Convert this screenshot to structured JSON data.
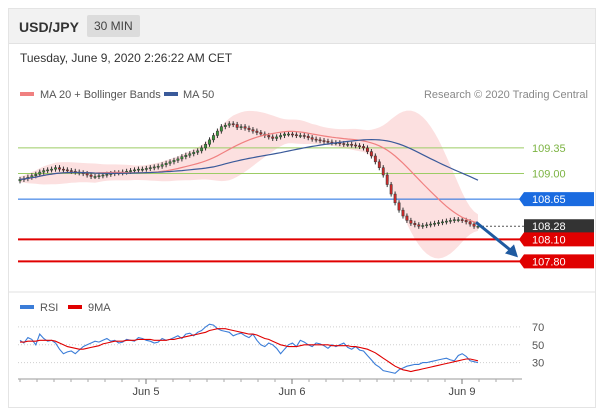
{
  "header": {
    "pair": "USD/JPY",
    "timeframe": "30 MIN",
    "timestamp": "Tuesday, June 9, 2020 2:26:22 AM CET"
  },
  "legend": {
    "items": [
      {
        "label": "MA 20 + Bollinger Bands",
        "color": "#f08080"
      },
      {
        "label": "MA 50",
        "color": "#3a5a9a"
      }
    ],
    "credit": "Research © 2020 Trading Central"
  },
  "chart_data": [
    {
      "type": "candlestick",
      "ylim": [
        107.45,
        109.95
      ],
      "x_ticks": [
        "Jun 5",
        "Jun 6",
        "Jun 9"
      ],
      "levels": [
        {
          "label": "109.35",
          "value": 109.35,
          "color": "#9ccc65",
          "style": "thin"
        },
        {
          "label": "109.00",
          "value": 109.0,
          "color": "#9ccc65",
          "style": "thin"
        },
        {
          "label": "108.65",
          "value": 108.65,
          "color": "#1a6be0",
          "style": "tag"
        },
        {
          "label": "108.28",
          "value": 108.28,
          "color": "#333333",
          "style": "current"
        },
        {
          "label": "108.10",
          "value": 108.1,
          "color": "#e00000",
          "style": "tag"
        },
        {
          "label": "107.80",
          "value": 107.8,
          "color": "#e00000",
          "style": "tag"
        }
      ],
      "forecast_arrow": {
        "from": 108.28,
        "to": 107.8,
        "color": "#1f5aa0"
      },
      "close": [
        108.92,
        108.93,
        108.95,
        108.97,
        108.99,
        109.02,
        109.04,
        109.05,
        109.06,
        109.08,
        109.06,
        109.05,
        109.04,
        109.03,
        109.02,
        109.01,
        109.0,
        108.98,
        108.96,
        108.96,
        108.97,
        108.98,
        108.99,
        109.0,
        109.01,
        109.01,
        109.02,
        109.03,
        109.04,
        109.05,
        109.06,
        109.06,
        109.07,
        109.08,
        109.09,
        109.1,
        109.12,
        109.14,
        109.16,
        109.18,
        109.2,
        109.23,
        109.25,
        109.27,
        109.29,
        109.31,
        109.35,
        109.4,
        109.46,
        109.52,
        109.58,
        109.64,
        109.66,
        109.68,
        109.67,
        109.63,
        109.64,
        109.62,
        109.6,
        109.58,
        109.56,
        109.54,
        109.52,
        109.5,
        109.48,
        109.5,
        109.52,
        109.54,
        109.54,
        109.53,
        109.52,
        109.52,
        109.51,
        109.49,
        109.47,
        109.46,
        109.45,
        109.44,
        109.43,
        109.42,
        109.42,
        109.41,
        109.4,
        109.4,
        109.39,
        109.38,
        109.37,
        109.35,
        109.3,
        109.24,
        109.16,
        109.08,
        108.98,
        108.85,
        108.72,
        108.6,
        108.5,
        108.42,
        108.36,
        108.32,
        108.3,
        108.28,
        108.29,
        108.3,
        108.31,
        108.32,
        108.33,
        108.34,
        108.35,
        108.36,
        108.37,
        108.37,
        108.36,
        108.34,
        108.31,
        108.28,
        108.28
      ]
    },
    {
      "type": "line",
      "title": "RSI",
      "legend": [
        {
          "name": "RSI",
          "color": "#3b7dd8"
        },
        {
          "name": "9MA",
          "color": "#e00000"
        }
      ],
      "ylim": [
        15,
        80
      ],
      "y_ticks": [
        "70",
        "50",
        "30"
      ],
      "series": [
        {
          "name": "RSI",
          "values": [
            55,
            52,
            58,
            56,
            50,
            62,
            57,
            54,
            55,
            52,
            45,
            40,
            42,
            43,
            40,
            44,
            48,
            50,
            52,
            54,
            53,
            55,
            57,
            54,
            55,
            52,
            53,
            56,
            55,
            54,
            58,
            57,
            55,
            54,
            52,
            53,
            57,
            55,
            56,
            58,
            60,
            57,
            62,
            63,
            60,
            64,
            66,
            70,
            73,
            72,
            68,
            66,
            65,
            64,
            60,
            62,
            63,
            60,
            58,
            62,
            55,
            50,
            48,
            52,
            50,
            46,
            40,
            45,
            50,
            52,
            48,
            55,
            53,
            50,
            48,
            52,
            51,
            49,
            46,
            50,
            48,
            50,
            52,
            47,
            45,
            48,
            44,
            43,
            38,
            33,
            28,
            25,
            21,
            20,
            19,
            18,
            22,
            24,
            26,
            27,
            28,
            28,
            30,
            30,
            31,
            32,
            33,
            34,
            35,
            33,
            32,
            38,
            40,
            37,
            32,
            31,
            30
          ]
        },
        {
          "name": "9MA",
          "values": [
            53,
            53,
            54,
            54,
            54,
            55,
            55,
            55,
            55,
            54,
            52,
            50,
            48,
            47,
            46,
            45,
            45,
            46,
            47,
            48,
            49,
            51,
            52,
            53,
            54,
            54,
            54,
            55,
            55,
            55,
            56,
            56,
            56,
            56,
            55,
            55,
            55,
            55,
            56,
            56,
            57,
            58,
            59,
            60,
            61,
            62,
            63,
            64,
            66,
            67,
            68,
            68,
            68,
            67,
            66,
            65,
            64,
            63,
            62,
            62,
            61,
            59,
            57,
            56,
            54,
            52,
            50,
            49,
            48,
            48,
            48,
            49,
            50,
            50,
            50,
            50,
            50,
            50,
            50,
            49,
            49,
            49,
            49,
            49,
            48,
            48,
            47,
            46,
            45,
            43,
            41,
            38,
            35,
            32,
            29,
            26,
            24,
            22,
            21,
            20,
            21,
            22,
            23,
            24,
            25,
            26,
            27,
            28,
            29,
            30,
            31,
            32,
            33,
            34,
            34,
            33,
            32
          ]
        }
      ]
    }
  ]
}
